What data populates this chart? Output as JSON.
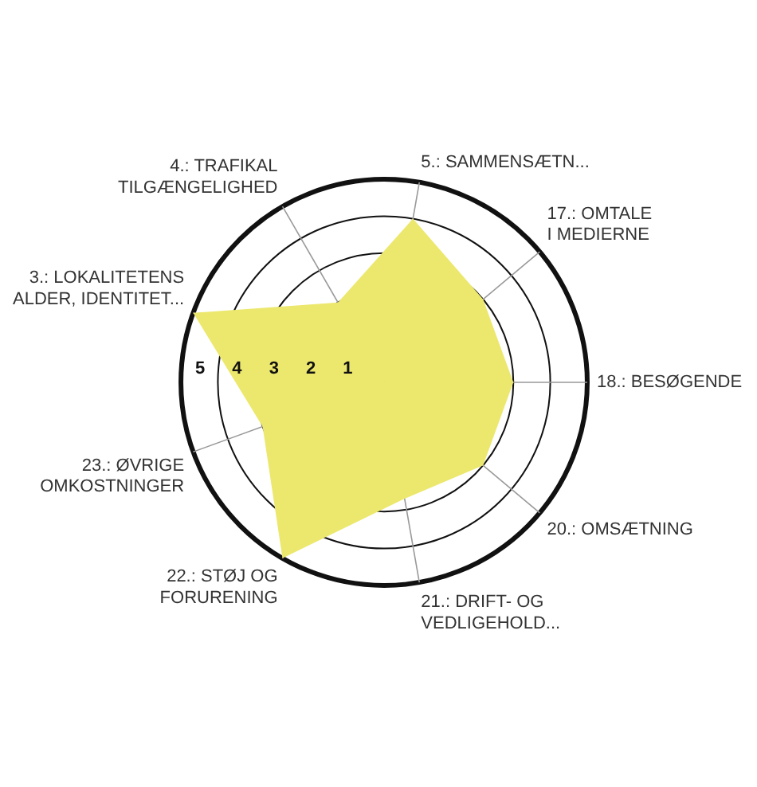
{
  "chart_data": {
    "type": "radar",
    "categories": [
      "5.: SAMMENSÆTN...",
      "17.: OMTALE I MEDIERNE",
      "18.: BESØGENDE",
      "20.: OMSÆTNING",
      "21.: DRIFT- OG VEDLIGEHOLD...",
      "22.: STØJ OG FORURENING",
      "23.: ØVRIGE OMKOSTNINGER",
      "3.: LOKALITETENS ALDER, IDENTITET...",
      "4.: TRAFIKAL TILGÆNGELIGHED"
    ],
    "series": [
      {
        "color": "#ece86e",
        "values": [
          4,
          3,
          3,
          3,
          2.7,
          5,
          3,
          5,
          2
        ]
      }
    ],
    "ylim": [
      -0.5,
      5
    ],
    "yticks": [
      1,
      2,
      3,
      4,
      5
    ],
    "grid": true,
    "legend": false,
    "marker": "none"
  }
}
